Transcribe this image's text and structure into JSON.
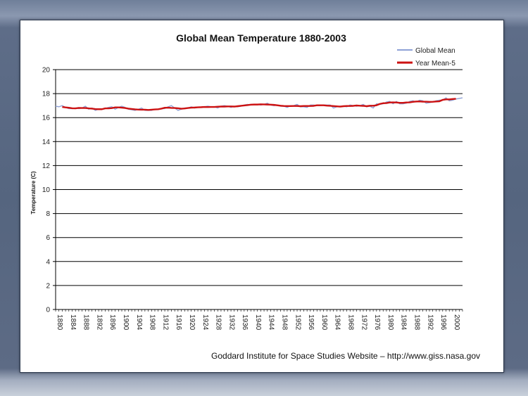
{
  "chart_data": {
    "type": "line",
    "title": "Global Mean Temperature 1880-2003",
    "xlabel": "",
    "ylabel": "Temperature (C)",
    "ylim": [
      0,
      20
    ],
    "xlim": [
      1880,
      2003
    ],
    "y_ticks": [
      0,
      2,
      4,
      6,
      8,
      10,
      12,
      14,
      16,
      18,
      20
    ],
    "x_ticks": [
      1880,
      1884,
      1888,
      1892,
      1896,
      1900,
      1904,
      1908,
      1912,
      1916,
      1920,
      1924,
      1928,
      1932,
      1936,
      1940,
      1944,
      1948,
      1952,
      1956,
      1960,
      1964,
      1968,
      1972,
      1976,
      1980,
      1984,
      1988,
      1992,
      1996,
      2000
    ],
    "grid": true,
    "legend_position": "top-right",
    "series": [
      {
        "name": "Global Mean",
        "color": "#8ea1d6",
        "x": [
          1880,
          1881,
          1882,
          1883,
          1884,
          1885,
          1886,
          1887,
          1888,
          1889,
          1890,
          1891,
          1892,
          1893,
          1894,
          1895,
          1896,
          1897,
          1898,
          1899,
          1900,
          1901,
          1902,
          1903,
          1904,
          1905,
          1906,
          1907,
          1908,
          1909,
          1910,
          1911,
          1912,
          1913,
          1914,
          1915,
          1916,
          1917,
          1918,
          1919,
          1920,
          1921,
          1922,
          1923,
          1924,
          1925,
          1926,
          1927,
          1928,
          1929,
          1930,
          1931,
          1932,
          1933,
          1934,
          1935,
          1936,
          1937,
          1938,
          1939,
          1940,
          1941,
          1942,
          1943,
          1944,
          1945,
          1946,
          1947,
          1948,
          1949,
          1950,
          1951,
          1952,
          1953,
          1954,
          1955,
          1956,
          1957,
          1958,
          1959,
          1960,
          1961,
          1962,
          1963,
          1964,
          1965,
          1966,
          1967,
          1968,
          1969,
          1970,
          1971,
          1972,
          1973,
          1974,
          1975,
          1976,
          1977,
          1978,
          1979,
          1980,
          1981,
          1982,
          1983,
          1984,
          1985,
          1986,
          1987,
          1988,
          1989,
          1990,
          1991,
          1992,
          1993,
          1994,
          1995,
          1996,
          1997,
          1998,
          1999,
          2000,
          2001,
          2002,
          2003
        ],
        "values": [
          16.95,
          16.9,
          17.0,
          16.85,
          16.75,
          16.75,
          16.8,
          16.75,
          16.8,
          16.95,
          16.7,
          16.8,
          16.6,
          16.7,
          16.7,
          16.75,
          16.85,
          16.9,
          16.7,
          16.85,
          16.95,
          16.85,
          16.7,
          16.65,
          16.6,
          16.7,
          16.8,
          16.6,
          16.6,
          16.6,
          16.7,
          16.7,
          16.75,
          16.75,
          16.9,
          17.0,
          16.8,
          16.6,
          16.7,
          16.8,
          16.8,
          16.9,
          16.8,
          16.85,
          16.85,
          16.9,
          16.95,
          16.9,
          16.9,
          16.8,
          16.95,
          17.0,
          16.95,
          16.85,
          16.95,
          16.9,
          16.95,
          17.05,
          17.1,
          17.05,
          17.1,
          17.1,
          17.05,
          17.1,
          17.2,
          17.05,
          17.0,
          17.05,
          16.95,
          16.95,
          16.85,
          17.0,
          17.0,
          17.1,
          16.9,
          16.9,
          16.85,
          17.05,
          17.05,
          17.0,
          17.0,
          17.05,
          17.05,
          17.05,
          16.8,
          16.9,
          16.95,
          16.95,
          16.9,
          17.05,
          17.0,
          16.95,
          17.0,
          17.1,
          16.9,
          16.95,
          16.8,
          17.15,
          17.1,
          17.15,
          17.3,
          17.35,
          17.15,
          17.35,
          17.15,
          17.15,
          17.2,
          17.35,
          17.4,
          17.3,
          17.45,
          17.4,
          17.2,
          17.25,
          17.3,
          17.4,
          17.45,
          17.45,
          17.65,
          17.4,
          17.45,
          17.55,
          17.6,
          17.65
        ]
      },
      {
        "name": "Year Mean-5",
        "color": "#cc1111",
        "x": [
          1882,
          1883,
          1884,
          1885,
          1886,
          1887,
          1888,
          1889,
          1890,
          1891,
          1892,
          1893,
          1894,
          1895,
          1896,
          1897,
          1898,
          1899,
          1900,
          1901,
          1902,
          1903,
          1904,
          1905,
          1906,
          1907,
          1908,
          1909,
          1910,
          1911,
          1912,
          1913,
          1914,
          1915,
          1916,
          1917,
          1918,
          1919,
          1920,
          1921,
          1922,
          1923,
          1924,
          1925,
          1926,
          1927,
          1928,
          1929,
          1930,
          1931,
          1932,
          1933,
          1934,
          1935,
          1936,
          1937,
          1938,
          1939,
          1940,
          1941,
          1942,
          1943,
          1944,
          1945,
          1946,
          1947,
          1948,
          1949,
          1950,
          1951,
          1952,
          1953,
          1954,
          1955,
          1956,
          1957,
          1958,
          1959,
          1960,
          1961,
          1962,
          1963,
          1964,
          1965,
          1966,
          1967,
          1968,
          1969,
          1970,
          1971,
          1972,
          1973,
          1974,
          1975,
          1976,
          1977,
          1978,
          1979,
          1980,
          1981,
          1982,
          1983,
          1984,
          1985,
          1986,
          1987,
          1988,
          1989,
          1990,
          1991,
          1992,
          1993,
          1994,
          1995,
          1996,
          1997,
          1998,
          1999,
          2000,
          2001
        ],
        "values": [
          16.89,
          16.85,
          16.82,
          16.78,
          16.77,
          16.81,
          16.8,
          16.8,
          16.77,
          16.75,
          16.71,
          16.7,
          16.7,
          16.77,
          16.77,
          16.79,
          16.85,
          16.85,
          16.83,
          16.8,
          16.75,
          16.72,
          16.69,
          16.67,
          16.66,
          16.66,
          16.64,
          16.66,
          16.68,
          16.7,
          16.75,
          16.82,
          16.83,
          16.81,
          16.8,
          16.78,
          16.74,
          16.76,
          16.8,
          16.83,
          16.84,
          16.86,
          16.87,
          16.89,
          16.88,
          16.89,
          16.89,
          16.91,
          16.92,
          16.92,
          16.93,
          16.93,
          16.92,
          16.95,
          16.98,
          17.01,
          17.04,
          17.08,
          17.09,
          17.09,
          17.11,
          17.1,
          17.09,
          17.08,
          17.06,
          17.03,
          16.99,
          16.97,
          16.96,
          16.96,
          16.97,
          16.97,
          16.95,
          16.97,
          16.97,
          16.97,
          16.98,
          17.03,
          17.03,
          17.03,
          17.0,
          16.98,
          16.96,
          16.94,
          16.92,
          16.95,
          16.97,
          16.97,
          16.98,
          17.01,
          16.99,
          16.98,
          16.95,
          16.99,
          16.99,
          17.03,
          17.14,
          17.2,
          17.21,
          17.26,
          17.27,
          17.26,
          17.23,
          17.23,
          17.26,
          17.27,
          17.31,
          17.34,
          17.35,
          17.33,
          17.33,
          17.31,
          17.32,
          17.34,
          17.36,
          17.48,
          17.52,
          17.52,
          17.55,
          17.57
        ]
      }
    ],
    "source_note": "Goddard Institute for Space Studies Website – http://www.giss.nasa.gov"
  }
}
